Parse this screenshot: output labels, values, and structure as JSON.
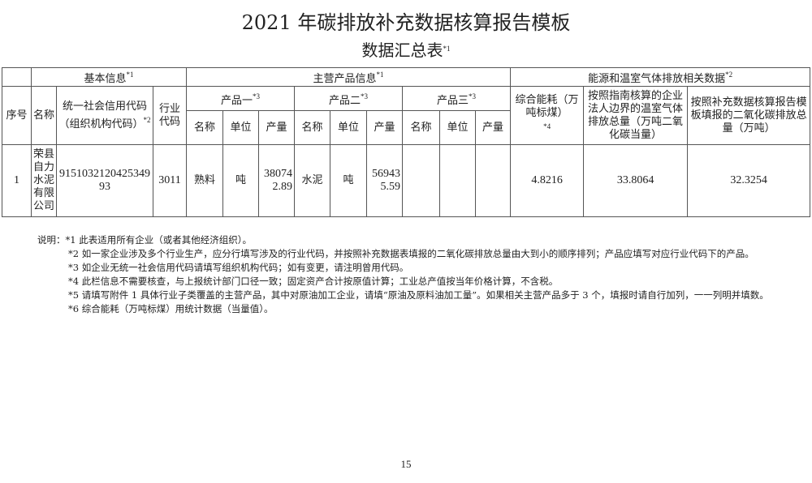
{
  "title": "2021 年碳排放补充数据核算报告模板",
  "subtitle": "数据汇总表",
  "subtitle_mark": "*1",
  "headers": {
    "basic": "基本信息",
    "basic_mark": "*1",
    "product": "主营产品信息",
    "product_mark": "*1",
    "energy": "能源和温室气体排放相关数据",
    "energy_mark": "*2",
    "seq": "序号",
    "name": "名称",
    "credit_code": "统一社会信用代码（组织机构代码）",
    "credit_mark": "*2",
    "industry_code": "行业代码",
    "p1": "产品一",
    "p2": "产品二",
    "p3": "产品三",
    "p_mark": "*3",
    "pname": "名称",
    "unit": "单位",
    "output": "产量",
    "energy_total": "综合能耗（万吨标煤）",
    "energy_total_mark": "*4",
    "guide_total": "按照指南核算的企业法人边界的温室气体排放总量（万吨二氧化碳当量）",
    "supp_total": "按照补充数据核算报告模板填报的二氧化碳排放总量（万吨）"
  },
  "rows": [
    {
      "seq": "1",
      "name": "荣县自力水泥有限公司",
      "credit_code": "915103212042534993",
      "industry_code": "3011",
      "p1_name": "熟料",
      "p1_unit": "吨",
      "p1_output": "380742.89",
      "p2_name": "水泥",
      "p2_unit": "吨",
      "p2_output": "569435.59",
      "p3_name": "",
      "p3_unit": "",
      "p3_output": "",
      "energy_total": "4.8216",
      "guide_total": "33.8064",
      "supp_total": "32.3254"
    }
  ],
  "notes": [
    "说明：*1 此表适用所有企业（或者其他经济组织）。",
    "*2 如一家企业涉及多个行业生产，应分行填写涉及的行业代码，并按照补充数据表填报的二氧化碳排放总量由大到小的顺序排列；产品应填写对应行业代码下的产品。",
    "*3 如企业无统一社会信用代码请填写组织机构代码；如有变更，请注明曾用代码。",
    "*4 此栏信息不需要核查，与上报统计部门口径一致；固定资产合计按原值计算；工业总产值按当年价格计算，不含税。",
    "*5 请填写附件 1 具体行业子类覆盖的主营产品，其中对原油加工企业，请填“原油及原料油加工量”。如果相关主营产品多于 3 个，填报时请自行加列，一一列明并填数。",
    "*6 综合能耗（万吨标煤）用统计数据（当量值）。"
  ],
  "page_number": "15"
}
